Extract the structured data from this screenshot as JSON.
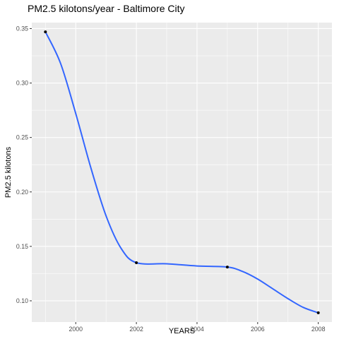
{
  "chart_data": {
    "type": "line",
    "title": "PM2.5 kilotons/year - Baltimore City",
    "xlabel": "YEARS",
    "ylabel": "PM2.5 kilotons",
    "xlim": [
      1998.55,
      2008.45
    ],
    "ylim": [
      0.0805,
      0.3555
    ],
    "x_ticks": [
      2000,
      2002,
      2004,
      2006,
      2008
    ],
    "x_tick_labels": [
      "2000",
      "2002",
      "2004",
      "2006",
      "2008"
    ],
    "y_ticks": [
      0.1,
      0.15,
      0.2,
      0.25,
      0.3,
      0.35
    ],
    "y_tick_labels": [
      "0.10",
      "0.15",
      "0.20",
      "0.25",
      "0.30",
      "0.35"
    ],
    "points": [
      {
        "x": 1999,
        "y": 0.347
      },
      {
        "x": 2002,
        "y": 0.135
      },
      {
        "x": 2005,
        "y": 0.131
      },
      {
        "x": 2008,
        "y": 0.089
      }
    ],
    "smooth_curve": [
      [
        1999,
        0.347
      ],
      [
        1999.5,
        0.318
      ],
      [
        2000,
        0.272
      ],
      [
        2000.5,
        0.222
      ],
      [
        2001,
        0.178
      ],
      [
        2001.5,
        0.148
      ],
      [
        2002,
        0.135
      ],
      [
        2003,
        0.134
      ],
      [
        2004,
        0.132
      ],
      [
        2005,
        0.131
      ],
      [
        2005.5,
        0.127
      ],
      [
        2006,
        0.12
      ],
      [
        2006.5,
        0.111
      ],
      [
        2007,
        0.102
      ],
      [
        2007.5,
        0.094
      ],
      [
        2008,
        0.089
      ]
    ],
    "grid": true,
    "colors": {
      "panel": "#ebebeb",
      "grid": "#ffffff",
      "line": "#3366ff",
      "point": "#000000",
      "tick_label": "#4d4d4d"
    }
  }
}
